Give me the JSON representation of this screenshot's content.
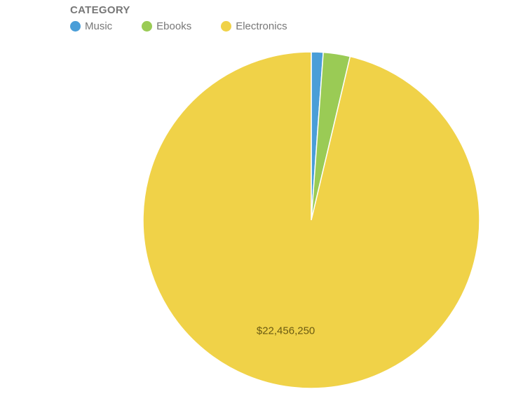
{
  "legend": {
    "title": "CATEGORY",
    "items": [
      {
        "label": "Music",
        "color": "#4a9ed8"
      },
      {
        "label": "Ebooks",
        "color": "#9acb55"
      },
      {
        "label": "Electronics",
        "color": "#f0d248"
      }
    ]
  },
  "chart_data": {
    "type": "pie",
    "categories": [
      "Music",
      "Ebooks",
      "Electronics"
    ],
    "values": [
      265000,
      600000,
      22456250
    ],
    "colors": [
      "#4a9ed8",
      "#9acb55",
      "#f0d248"
    ],
    "labels": [
      "",
      "",
      "$22,456,250"
    ],
    "legend_position": "top-left"
  }
}
